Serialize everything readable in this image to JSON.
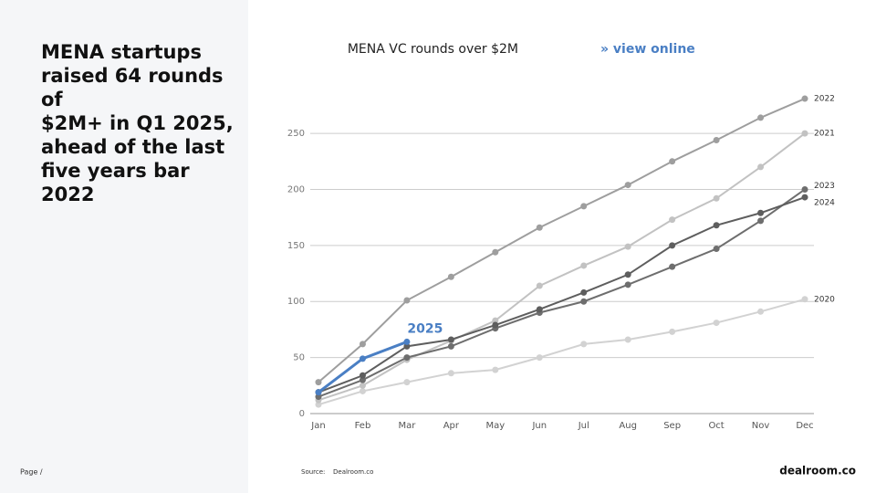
{
  "headline": [
    "MENA startups",
    "raised 64 rounds of",
    "$2M+ in Q1 2025,",
    "ahead of the last",
    "five years bar 2022"
  ],
  "footer": {
    "page": "Page /",
    "source_label": "Source:",
    "source": "Dealroom.co",
    "logo": "dealroom.co"
  },
  "chart_data": {
    "type": "line",
    "title": "MENA VC rounds over $2M",
    "link": "» view online",
    "categories": [
      "Jan",
      "Feb",
      "Mar",
      "Apr",
      "May",
      "Jun",
      "Jul",
      "Aug",
      "Sep",
      "Oct",
      "Nov",
      "Dec"
    ],
    "ylim": [
      0,
      290
    ],
    "yticks": [
      0,
      50,
      100,
      150,
      200,
      250
    ],
    "grid": true,
    "series": [
      {
        "name": "2020",
        "color": "#d2d2d2",
        "values": [
          8,
          20,
          28,
          36,
          39,
          50,
          62,
          66,
          73,
          81,
          91,
          102
        ]
      },
      {
        "name": "2021",
        "color": "#c2c2c2",
        "values": [
          12,
          25,
          48,
          65,
          83,
          114,
          132,
          149,
          173,
          192,
          220,
          250
        ]
      },
      {
        "name": "2022",
        "color": "#9e9e9e",
        "values": [
          28,
          62,
          101,
          122,
          144,
          166,
          185,
          204,
          225,
          244,
          264,
          281
        ]
      },
      {
        "name": "2023",
        "color": "#6e6e6e",
        "values": [
          15,
          30,
          50,
          60,
          76,
          90,
          100,
          115,
          131,
          147,
          172,
          200
        ]
      },
      {
        "name": "2024",
        "color": "#5e5e5e",
        "values": [
          19,
          34,
          60,
          66,
          79,
          93,
          108,
          124,
          150,
          168,
          179,
          193
        ]
      },
      {
        "name": "2025",
        "color": "#4a7fc4",
        "values": [
          19,
          49,
          64,
          null,
          null,
          null,
          null,
          null,
          null,
          null,
          null,
          null
        ]
      }
    ]
  }
}
